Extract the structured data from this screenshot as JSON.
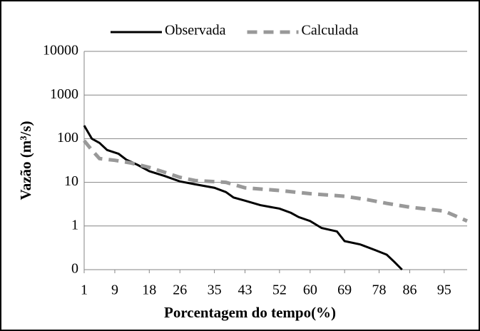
{
  "chart_data": {
    "type": "line",
    "legend": "top",
    "y_label": "Vazão (m³/s)",
    "x_label": "Porcentagem do tempo(%)",
    "log_y": true,
    "grid": true,
    "xlim": [
      1,
      101
    ],
    "xticks": [
      1,
      9,
      18,
      26,
      35,
      43,
      52,
      60,
      69,
      78,
      86,
      95
    ],
    "ylim": [
      0.1,
      10000
    ],
    "yticks": [
      {
        "value": 0.1,
        "label": "0"
      },
      1,
      10,
      100,
      1000,
      10000
    ],
    "series": [
      {
        "name": "Observada",
        "color": "#000000",
        "dash": false,
        "x": [
          1,
          3,
          5,
          7,
          10,
          12,
          15,
          18,
          22,
          26,
          30,
          35,
          38,
          40,
          43,
          47,
          52,
          55,
          57,
          60,
          63,
          67,
          69,
          73,
          77,
          80,
          82,
          84
        ],
        "values": [
          200,
          100,
          80,
          55,
          45,
          33,
          25,
          18,
          14,
          10.5,
          9,
          7.5,
          6,
          4.5,
          3.8,
          3,
          2.5,
          2,
          1.6,
          1.3,
          0.9,
          0.75,
          0.45,
          0.38,
          0.28,
          0.22,
          0.15,
          0.1
        ]
      },
      {
        "name": "Calculada",
        "color": "#999999",
        "dash": true,
        "x": [
          1,
          3,
          5,
          9,
          13,
          18,
          22,
          26,
          30,
          38,
          43,
          52,
          60,
          69,
          75,
          80,
          86,
          95,
          101
        ],
        "values": [
          90,
          55,
          35,
          32,
          28,
          22,
          17,
          13,
          11,
          10,
          7.5,
          6.5,
          5.5,
          4.8,
          4,
          3.3,
          2.7,
          2.2,
          1.3
        ]
      }
    ]
  }
}
